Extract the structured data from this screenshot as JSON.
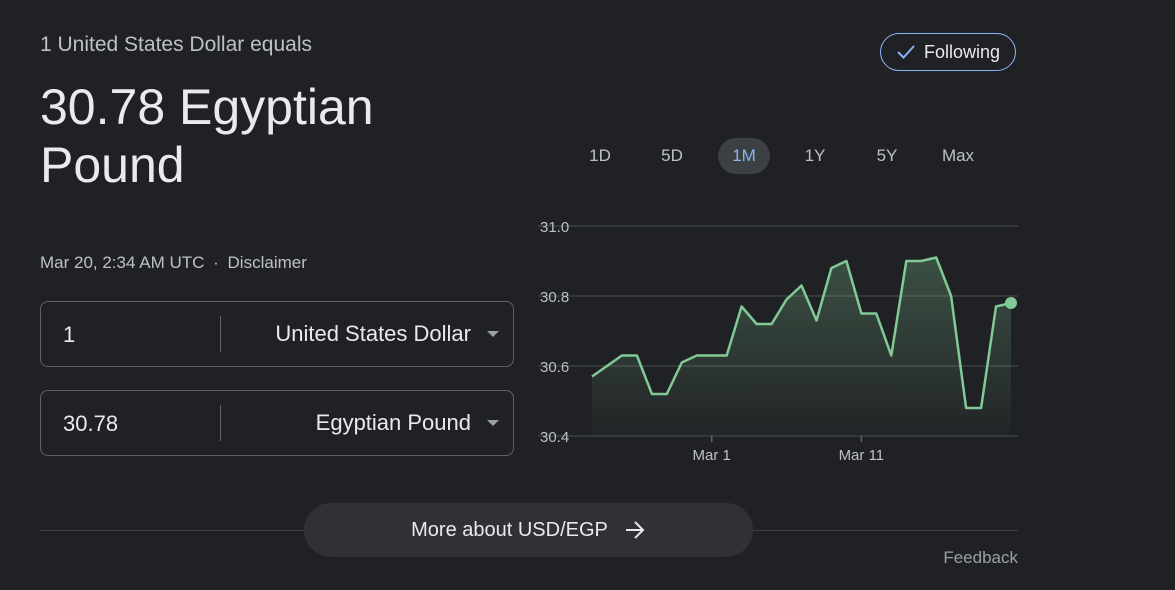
{
  "header": {
    "subtitle": "1 United States Dollar equals",
    "rate_line1": "30.78 Egyptian",
    "rate_line2": "Pound",
    "timestamp": "Mar 20, 2:34 AM UTC",
    "separator": "·",
    "disclaimer": "Disclaimer"
  },
  "follow": {
    "label": "Following",
    "icon": "checkmark-icon"
  },
  "converter": {
    "from": {
      "value": "1",
      "currency": "United States Dollar"
    },
    "to": {
      "value": "30.78",
      "currency": "Egyptian Pound"
    }
  },
  "ranges": {
    "items": [
      "1D",
      "5D",
      "1M",
      "1Y",
      "5Y",
      "Max"
    ],
    "selected": "1M"
  },
  "more_button": {
    "label": "More about USD/EGP",
    "icon": "arrow-right-icon"
  },
  "feedback": "Feedback",
  "colors": {
    "accent": "#8ab4f8",
    "line": "#81c995",
    "background": "#202124"
  },
  "chart_data": {
    "type": "area",
    "ylim": [
      30.4,
      31.0
    ],
    "y_ticks": [
      "31.0",
      "30.8",
      "30.6",
      "30.4"
    ],
    "x_ticks": [
      {
        "label": "Mar 1",
        "index": 8
      },
      {
        "label": "Mar 11",
        "index": 18
      }
    ],
    "values": [
      30.57,
      30.6,
      30.63,
      30.63,
      30.52,
      30.52,
      30.61,
      30.63,
      30.63,
      30.63,
      30.77,
      30.72,
      30.72,
      30.79,
      30.83,
      30.73,
      30.88,
      30.9,
      30.75,
      30.75,
      30.63,
      30.9,
      30.9,
      30.91,
      30.8,
      30.48,
      30.48,
      30.77,
      30.78
    ],
    "last_value": 30.78
  }
}
